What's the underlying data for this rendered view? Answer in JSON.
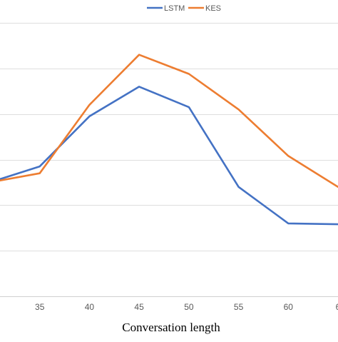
{
  "chart_data": {
    "type": "line",
    "title": "",
    "xlabel": "Conversation length",
    "ylabel": "",
    "x": [
      30,
      35,
      40,
      45,
      50,
      55,
      60,
      65
    ],
    "x_tick_labels": [
      "35",
      "40",
      "45",
      "50",
      "55",
      "60",
      "6"
    ],
    "xlim": [
      30,
      65
    ],
    "ylim": [
      0,
      6
    ],
    "grid": "horizontal",
    "legend_position": "top",
    "series": [
      {
        "name": "LSTM",
        "color": "#4472C4",
        "values": [
          2.5,
          2.85,
          3.95,
          4.6,
          4.15,
          2.4,
          1.6,
          1.58
        ]
      },
      {
        "name": "KES",
        "color": "#ED7D31",
        "values": [
          2.5,
          2.7,
          4.2,
          5.3,
          4.88,
          4.1,
          3.08,
          2.4
        ]
      }
    ]
  }
}
